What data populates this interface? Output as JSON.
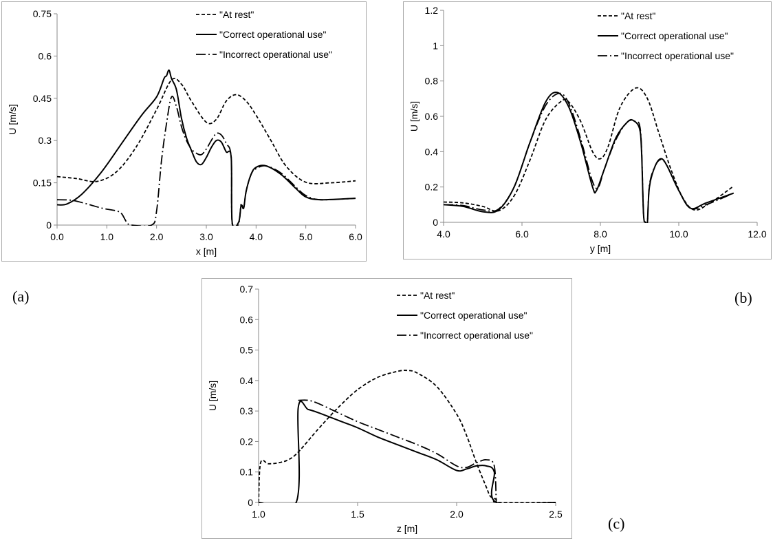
{
  "panel_labels": {
    "a": "(a)",
    "b": "(b)",
    "c": "(c)"
  },
  "chart_data": [
    {
      "id": "a",
      "type": "line",
      "title": "",
      "xlabel": "x [m]",
      "ylabel": "U [m/s]",
      "xlim": [
        0,
        6
      ],
      "ylim": [
        0,
        0.75
      ],
      "xticks": [
        0,
        1,
        2,
        3,
        4,
        5,
        6
      ],
      "xtick_labels": [
        "0.0",
        "1.0",
        "2.0",
        "3.0",
        "4.0",
        "5.0",
        "6.0"
      ],
      "yticks": [
        0,
        0.15,
        0.3,
        0.45,
        0.6,
        0.75
      ],
      "ytick_labels": [
        "0",
        "0.15",
        "0.3",
        "0.45",
        "0.6",
        "0.75"
      ],
      "grid": false,
      "legend_position": "top-right",
      "series": [
        {
          "name": "\"At rest\"",
          "style": "dashed",
          "points": [
            [
              0,
              0.172
            ],
            [
              0.4,
              0.165
            ],
            [
              0.8,
              0.155
            ],
            [
              1.2,
              0.19
            ],
            [
              1.6,
              0.28
            ],
            [
              2.0,
              0.41
            ],
            [
              2.3,
              0.515
            ],
            [
              2.5,
              0.5
            ],
            [
              2.7,
              0.44
            ],
            [
              3.0,
              0.365
            ],
            [
              3.2,
              0.375
            ],
            [
              3.4,
              0.44
            ],
            [
              3.6,
              0.463
            ],
            [
              3.8,
              0.44
            ],
            [
              4.0,
              0.39
            ],
            [
              4.3,
              0.3
            ],
            [
              4.6,
              0.21
            ],
            [
              5.0,
              0.152
            ],
            [
              5.5,
              0.15
            ],
            [
              6.0,
              0.157
            ]
          ]
        },
        {
          "name": "\"Correct operational use\"",
          "style": "solid",
          "points": [
            [
              0,
              0.072
            ],
            [
              0.2,
              0.075
            ],
            [
              0.5,
              0.11
            ],
            [
              0.9,
              0.19
            ],
            [
              1.3,
              0.29
            ],
            [
              1.7,
              0.39
            ],
            [
              2.0,
              0.455
            ],
            [
              2.15,
              0.52
            ],
            [
              2.2,
              0.53
            ],
            [
              2.25,
              0.55
            ],
            [
              2.3,
              0.52
            ],
            [
              2.4,
              0.48
            ],
            [
              2.5,
              0.38
            ],
            [
              2.6,
              0.31
            ],
            [
              2.7,
              0.265
            ],
            [
              2.8,
              0.225
            ],
            [
              2.9,
              0.215
            ],
            [
              3.0,
              0.24
            ],
            [
              3.1,
              0.275
            ],
            [
              3.2,
              0.3
            ],
            [
              3.3,
              0.295
            ],
            [
              3.4,
              0.26
            ],
            [
              3.5,
              0.24
            ],
            [
              3.52,
              0.01
            ],
            [
              3.65,
              0.01
            ],
            [
              3.7,
              0.07
            ],
            [
              3.75,
              0.06
            ],
            [
              3.8,
              0.12
            ],
            [
              3.9,
              0.18
            ],
            [
              4.0,
              0.205
            ],
            [
              4.2,
              0.21
            ],
            [
              4.5,
              0.18
            ],
            [
              4.8,
              0.13
            ],
            [
              5.0,
              0.1
            ],
            [
              5.3,
              0.09
            ],
            [
              6.0,
              0.095
            ]
          ]
        },
        {
          "name": "\"Incorrect operational use\"",
          "style": "dash-dot",
          "points": [
            [
              0,
              0.09
            ],
            [
              0.3,
              0.088
            ],
            [
              0.6,
              0.075
            ],
            [
              0.9,
              0.06
            ],
            [
              1.2,
              0.05
            ],
            [
              1.3,
              0.04
            ],
            [
              1.4,
              0.01
            ],
            [
              1.5,
              0.0
            ],
            [
              1.9,
              0.0
            ],
            [
              2.0,
              0.05
            ],
            [
              2.1,
              0.23
            ],
            [
              2.2,
              0.36
            ],
            [
              2.3,
              0.455
            ],
            [
              2.4,
              0.42
            ],
            [
              2.5,
              0.35
            ],
            [
              2.6,
              0.3
            ],
            [
              2.7,
              0.27
            ],
            [
              2.8,
              0.255
            ],
            [
              2.9,
              0.25
            ],
            [
              3.0,
              0.27
            ],
            [
              3.1,
              0.3
            ],
            [
              3.2,
              0.325
            ],
            [
              3.3,
              0.32
            ],
            [
              3.4,
              0.29
            ],
            [
              3.5,
              0.24
            ],
            [
              3.52,
              0.005
            ],
            [
              3.65,
              0.005
            ],
            [
              3.7,
              0.075
            ],
            [
              3.75,
              0.06
            ],
            [
              3.8,
              0.12
            ],
            [
              3.9,
              0.18
            ],
            [
              4.0,
              0.2
            ],
            [
              4.2,
              0.21
            ],
            [
              4.5,
              0.185
            ],
            [
              4.8,
              0.135
            ],
            [
              5.0,
              0.105
            ],
            [
              5.3,
              0.09
            ],
            [
              6.0,
              0.095
            ]
          ]
        }
      ]
    },
    {
      "id": "b",
      "type": "line",
      "title": "",
      "xlabel": "y [m]",
      "ylabel": "U [m/s]",
      "xlim": [
        4,
        12
      ],
      "ylim": [
        0,
        1.2
      ],
      "xticks": [
        4,
        6,
        8,
        10,
        12
      ],
      "xtick_labels": [
        "4.0",
        "6.0",
        "8.0",
        "10.0",
        "12.0"
      ],
      "yticks": [
        0,
        0.2,
        0.4,
        0.6,
        0.8,
        1.0,
        1.2
      ],
      "ytick_labels": [
        "0",
        "0.2",
        "0.4",
        "0.6",
        "0.8",
        "1",
        "1.2"
      ],
      "grid": false,
      "legend_position": "top-right",
      "series": [
        {
          "name": "\"At rest\"",
          "style": "dashed",
          "points": [
            [
              4.0,
              0.115
            ],
            [
              4.5,
              0.11
            ],
            [
              5.0,
              0.09
            ],
            [
              5.4,
              0.065
            ],
            [
              5.8,
              0.15
            ],
            [
              6.2,
              0.35
            ],
            [
              6.6,
              0.58
            ],
            [
              7.0,
              0.685
            ],
            [
              7.2,
              0.68
            ],
            [
              7.5,
              0.57
            ],
            [
              7.8,
              0.4
            ],
            [
              8.0,
              0.36
            ],
            [
              8.2,
              0.43
            ],
            [
              8.5,
              0.65
            ],
            [
              8.9,
              0.76
            ],
            [
              9.2,
              0.7
            ],
            [
              9.5,
              0.5
            ],
            [
              9.8,
              0.3
            ],
            [
              10.1,
              0.14
            ],
            [
              10.4,
              0.07
            ],
            [
              10.8,
              0.11
            ],
            [
              11.4,
              0.205
            ]
          ]
        },
        {
          "name": "\"Correct operational use\"",
          "style": "solid",
          "points": [
            [
              4.0,
              0.1
            ],
            [
              4.5,
              0.09
            ],
            [
              5.0,
              0.06
            ],
            [
              5.4,
              0.07
            ],
            [
              5.8,
              0.2
            ],
            [
              6.2,
              0.45
            ],
            [
              6.6,
              0.68
            ],
            [
              6.9,
              0.735
            ],
            [
              7.2,
              0.65
            ],
            [
              7.5,
              0.45
            ],
            [
              7.8,
              0.2
            ],
            [
              7.9,
              0.18
            ],
            [
              8.1,
              0.3
            ],
            [
              8.4,
              0.48
            ],
            [
              8.7,
              0.57
            ],
            [
              8.85,
              0.575
            ],
            [
              9.0,
              0.53
            ],
            [
              9.05,
              0.4
            ],
            [
              9.1,
              0.05
            ],
            [
              9.15,
              0.0
            ],
            [
              9.2,
              0.0
            ],
            [
              9.25,
              0.2
            ],
            [
              9.4,
              0.32
            ],
            [
              9.55,
              0.36
            ],
            [
              9.7,
              0.32
            ],
            [
              10.0,
              0.18
            ],
            [
              10.3,
              0.08
            ],
            [
              10.7,
              0.11
            ],
            [
              11.4,
              0.165
            ]
          ]
        },
        {
          "name": "\"Incorrect operational use\"",
          "style": "dash-dot",
          "points": [
            [
              4.0,
              0.1
            ],
            [
              4.5,
              0.095
            ],
            [
              5.0,
              0.07
            ],
            [
              5.4,
              0.075
            ],
            [
              5.8,
              0.2
            ],
            [
              6.2,
              0.45
            ],
            [
              6.6,
              0.66
            ],
            [
              6.95,
              0.73
            ],
            [
              7.2,
              0.67
            ],
            [
              7.5,
              0.47
            ],
            [
              7.8,
              0.23
            ],
            [
              7.95,
              0.2
            ],
            [
              8.1,
              0.3
            ],
            [
              8.4,
              0.47
            ],
            [
              8.7,
              0.57
            ],
            [
              8.9,
              0.57
            ],
            [
              9.0,
              0.55
            ],
            [
              9.05,
              0.42
            ],
            [
              9.1,
              0.05
            ],
            [
              9.15,
              0.0
            ],
            [
              9.2,
              0.0
            ],
            [
              9.25,
              0.21
            ],
            [
              9.4,
              0.32
            ],
            [
              9.55,
              0.355
            ],
            [
              9.7,
              0.32
            ],
            [
              10.0,
              0.18
            ],
            [
              10.3,
              0.08
            ],
            [
              10.7,
              0.1
            ],
            [
              11.4,
              0.165
            ]
          ]
        }
      ]
    },
    {
      "id": "c",
      "type": "line",
      "title": "",
      "xlabel": "z [m]",
      "ylabel": "U [m/s]",
      "xlim": [
        1.0,
        2.5
      ],
      "ylim": [
        0,
        0.7
      ],
      "xticks": [
        1.0,
        1.5,
        2.0,
        2.5
      ],
      "xtick_labels": [
        "1.0",
        "1.5",
        "2.0",
        "2.5"
      ],
      "yticks": [
        0,
        0.1,
        0.2,
        0.3,
        0.4,
        0.5,
        0.6,
        0.7
      ],
      "ytick_labels": [
        "0",
        "0.1",
        "0.2",
        "0.3",
        "0.4",
        "0.5",
        "0.6",
        "0.7"
      ],
      "grid": false,
      "legend_position": "top-right",
      "series": [
        {
          "name": "\"At rest\"",
          "style": "dashed",
          "points": [
            [
              1.0,
              0.0
            ],
            [
              1.01,
              0.13
            ],
            [
              1.05,
              0.127
            ],
            [
              1.1,
              0.13
            ],
            [
              1.15,
              0.14
            ],
            [
              1.2,
              0.165
            ],
            [
              1.3,
              0.24
            ],
            [
              1.4,
              0.31
            ],
            [
              1.5,
              0.37
            ],
            [
              1.6,
              0.41
            ],
            [
              1.7,
              0.43
            ],
            [
              1.75,
              0.433
            ],
            [
              1.8,
              0.425
            ],
            [
              1.9,
              0.38
            ],
            [
              2.0,
              0.29
            ],
            [
              2.05,
              0.22
            ],
            [
              2.1,
              0.13
            ],
            [
              2.15,
              0.05
            ],
            [
              2.17,
              0.02
            ],
            [
              2.2,
              0.01
            ],
            [
              2.21,
              0.0
            ],
            [
              2.5,
              0.0
            ]
          ]
        },
        {
          "name": "\"Correct operational use\"",
          "style": "solid",
          "points": [
            [
              1.0,
              0.0
            ],
            [
              1.19,
              0.0
            ],
            [
              1.2,
              0.31
            ],
            [
              1.25,
              0.305
            ],
            [
              1.3,
              0.295
            ],
            [
              1.4,
              0.27
            ],
            [
              1.5,
              0.245
            ],
            [
              1.6,
              0.215
            ],
            [
              1.7,
              0.19
            ],
            [
              1.8,
              0.165
            ],
            [
              1.9,
              0.14
            ],
            [
              2.0,
              0.105
            ],
            [
              2.05,
              0.11
            ],
            [
              2.1,
              0.12
            ],
            [
              2.15,
              0.12
            ],
            [
              2.19,
              0.1
            ],
            [
              2.2,
              0.0
            ],
            [
              2.5,
              0.0
            ]
          ]
        },
        {
          "name": "\"Incorrect operational use\"",
          "style": "dash-dot",
          "points": [
            [
              1.2,
              0.335
            ],
            [
              1.25,
              0.335
            ],
            [
              1.3,
              0.325
            ],
            [
              1.4,
              0.295
            ],
            [
              1.5,
              0.265
            ],
            [
              1.6,
              0.24
            ],
            [
              1.7,
              0.215
            ],
            [
              1.8,
              0.19
            ],
            [
              1.9,
              0.16
            ],
            [
              2.0,
              0.12
            ],
            [
              2.05,
              0.115
            ],
            [
              2.1,
              0.13
            ],
            [
              2.15,
              0.14
            ],
            [
              2.19,
              0.12
            ],
            [
              2.2,
              0.0
            ]
          ]
        }
      ]
    }
  ]
}
